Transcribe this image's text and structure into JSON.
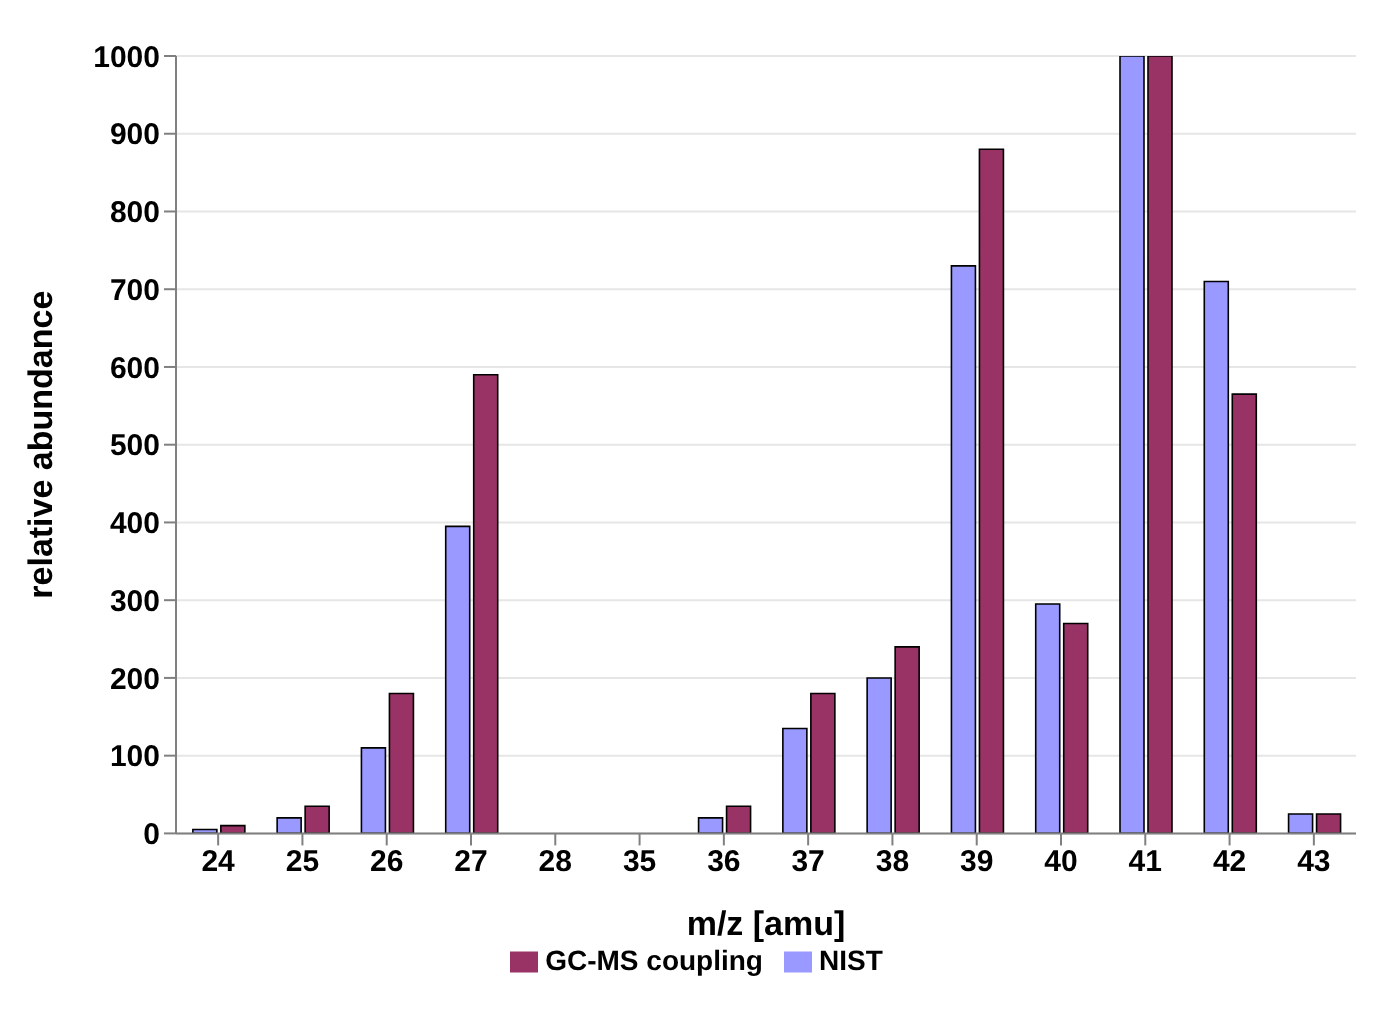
{
  "chart_data": {
    "type": "bar",
    "xlabel": "m/z [amu]",
    "ylabel": "relative abundance",
    "categories": [
      "24",
      "25",
      "26",
      "27",
      "28",
      "35",
      "36",
      "37",
      "38",
      "39",
      "40",
      "41",
      "42",
      "43"
    ],
    "series": [
      {
        "name": "NIST",
        "color": "#9999ff",
        "values": [
          5,
          20,
          110,
          395,
          null,
          null,
          20,
          135,
          200,
          730,
          295,
          1000,
          710,
          25
        ]
      },
      {
        "name": "GC-MS coupling",
        "color": "#993366",
        "values": [
          10,
          35,
          180,
          590,
          null,
          null,
          35,
          180,
          240,
          880,
          270,
          1000,
          565,
          25
        ]
      }
    ],
    "ylim": [
      0,
      1000
    ],
    "yticks": [
      0,
      100,
      200,
      300,
      400,
      500,
      600,
      700,
      800,
      900,
      1000
    ],
    "grid": "y",
    "legend": "bottom"
  }
}
